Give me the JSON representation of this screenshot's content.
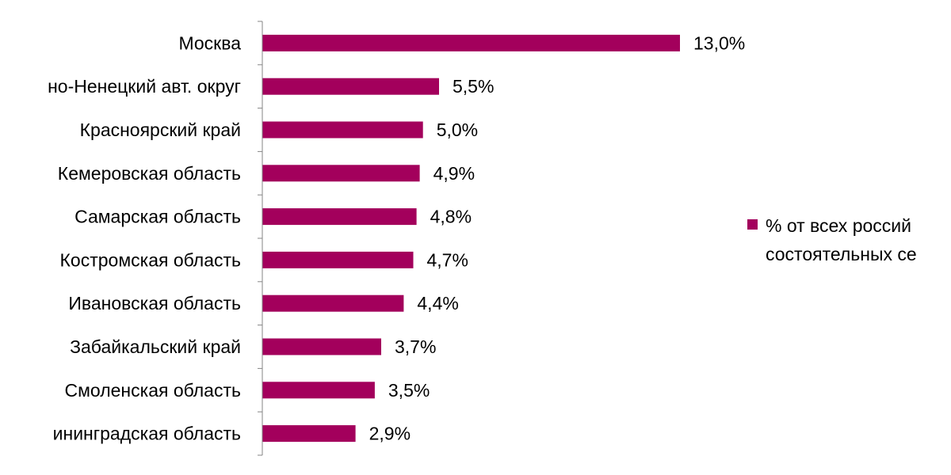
{
  "colors": {
    "bar": "#a3005c",
    "axis": "#868686",
    "text": "#000000"
  },
  "chart_data": {
    "type": "bar",
    "orientation": "horizontal",
    "categories": [
      "Москва",
      "но-Ненецкий авт. округ",
      "Красноярский край",
      "Кемеровская область",
      "Самарская область",
      "Костромская область",
      "Ивановская область",
      "Забайкальский край",
      "Смоленская область",
      "ининградская область"
    ],
    "series": [
      {
        "name": "% от всех россий состоятельных се",
        "values": [
          13.0,
          5.5,
          5.0,
          4.9,
          4.8,
          4.7,
          4.4,
          3.7,
          3.5,
          2.9
        ]
      }
    ],
    "data_labels": [
      "13,0%",
      "5,5%",
      "5,0%",
      "4,9%",
      "4,8%",
      "4,7%",
      "4,4%",
      "3,7%",
      "3,5%",
      "2,9%"
    ],
    "legend": {
      "position": "right",
      "lines": [
        "% от всех россий",
        "состоятельных се"
      ]
    },
    "xlim": [
      0,
      13.0
    ],
    "grid": false
  }
}
